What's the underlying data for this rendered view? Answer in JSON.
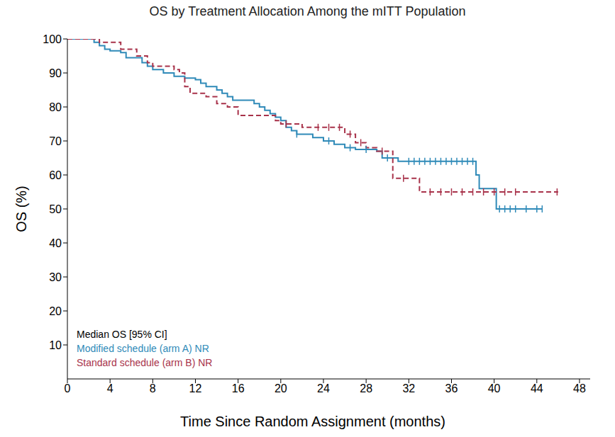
{
  "chart_data": {
    "type": "line",
    "title": "OS by Treatment Allocation Among the mITT Population",
    "x_label": "Time Since Random Assignment (months)",
    "y_label": "OS (%)",
    "xlim": [
      0,
      49
    ],
    "xticks": [
      0,
      4,
      8,
      12,
      16,
      20,
      24,
      28,
      32,
      36,
      40,
      44,
      48
    ],
    "ylim": [
      0,
      100
    ],
    "yticks": [
      10,
      20,
      30,
      40,
      50,
      60,
      70,
      80,
      90,
      100
    ],
    "grid": false,
    "legend": "lower left",
    "annotations": [
      "Median OS [95% CI]"
    ],
    "series": [
      {
        "name": "Modified schedule (arm A) NR",
        "color": "#2f8ab8",
        "line_style": "solid",
        "x": [
          0,
          2.5,
          3,
          3.5,
          4,
          5,
          5.5,
          7,
          7.5,
          8,
          9,
          10,
          11,
          12,
          12.5,
          13,
          14,
          14.5,
          15,
          15.5,
          17.5,
          18,
          18.5,
          19,
          19.5,
          20,
          20.5,
          21,
          21.5,
          23,
          24,
          25,
          26,
          27,
          29,
          29.5,
          31,
          38.3,
          38.6,
          40.2,
          44.5
        ],
        "values": [
          100,
          99,
          98,
          97,
          96.5,
          96,
          94.5,
          93,
          92,
          91,
          90,
          89,
          88.5,
          88,
          87,
          86,
          85,
          84,
          83,
          82,
          81,
          80,
          79,
          78,
          77,
          76,
          74,
          73,
          72,
          71,
          70,
          69,
          68,
          67.5,
          67,
          65,
          64,
          60,
          56,
          50,
          50
        ],
        "censored": {
          "x": [
            21.5,
            24.5,
            26.5,
            28,
            30,
            32,
            32.5,
            33,
            33.5,
            34,
            34.5,
            35,
            35.5,
            36,
            36.5,
            37,
            37.5,
            38,
            40.5,
            41,
            41.5,
            42,
            43,
            44,
            44.5
          ],
          "values": [
            72,
            70,
            68,
            67.5,
            65,
            64,
            64,
            64,
            64,
            64,
            64,
            64,
            64,
            64,
            64,
            64,
            64,
            64,
            50,
            50,
            50,
            50,
            50,
            50,
            50
          ]
        }
      },
      {
        "name": "Standard schedule (arm B) NR",
        "color": "#a8324a",
        "line_style": "dashed",
        "x": [
          0,
          3,
          5,
          6.5,
          7.5,
          8,
          10,
          10.5,
          11,
          11.5,
          13,
          14,
          15,
          16,
          19.5,
          20,
          22,
          26,
          27,
          28,
          29,
          30.5,
          33,
          46
        ],
        "values": [
          100,
          99,
          97,
          95,
          93,
          92,
          91,
          90,
          86,
          84,
          83,
          81,
          80,
          77.5,
          76,
          75,
          74,
          72,
          69.5,
          68,
          67,
          59,
          55,
          55
        ],
        "censored": {
          "x": [
            20.5,
            23.5,
            24.5,
            25.5,
            26.5,
            27.5,
            29.5,
            31.5,
            34,
            35,
            36,
            37,
            38,
            39,
            40,
            41,
            42,
            45.9
          ],
          "values": [
            75,
            74,
            74,
            74,
            72,
            69.5,
            67,
            59,
            55,
            55,
            55,
            55,
            55,
            55,
            55,
            55,
            55,
            55
          ]
        }
      }
    ]
  }
}
